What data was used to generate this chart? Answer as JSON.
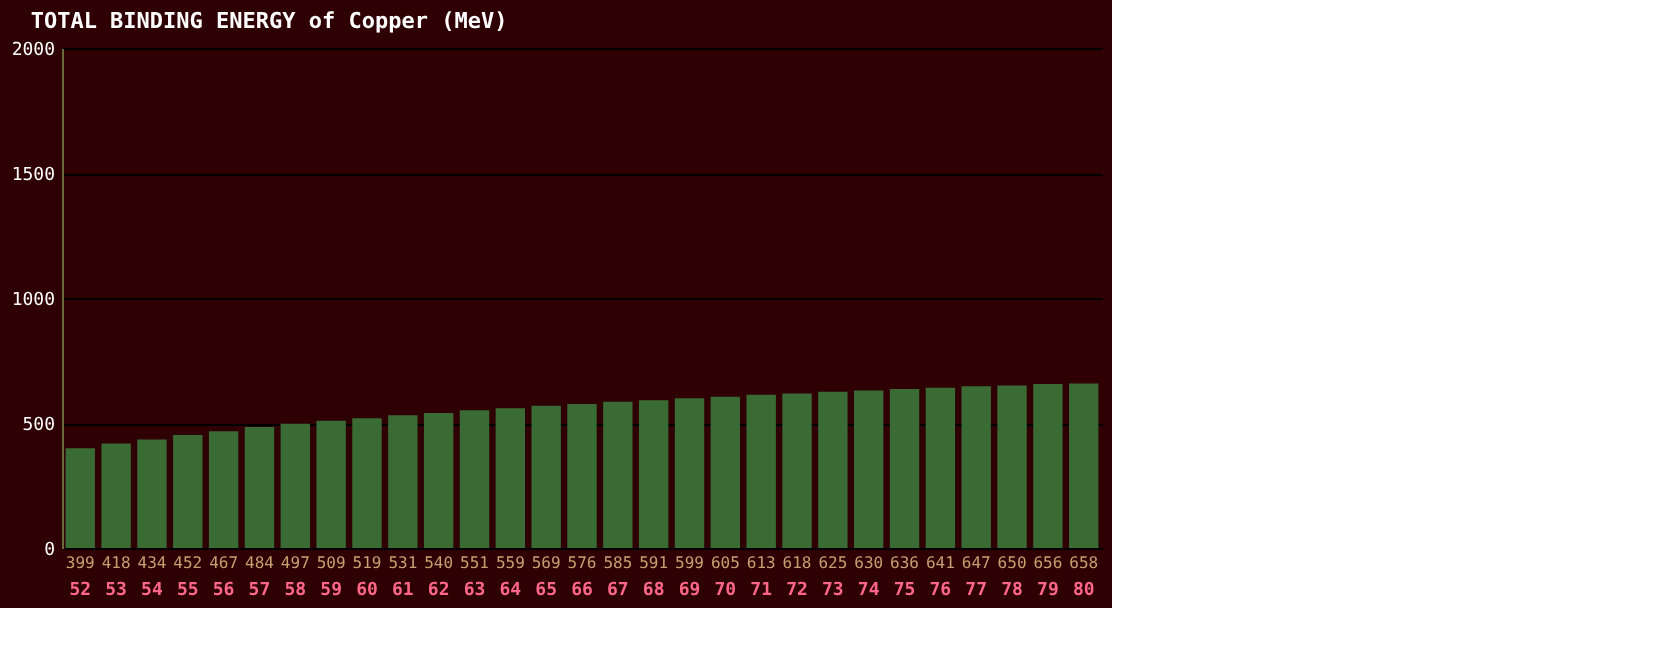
{
  "chart_data": {
    "type": "bar",
    "title": "TOTAL BINDING ENERGY of Copper (MeV)",
    "categories": [
      "52",
      "53",
      "54",
      "55",
      "56",
      "57",
      "58",
      "59",
      "60",
      "61",
      "62",
      "63",
      "64",
      "65",
      "66",
      "67",
      "68",
      "69",
      "70",
      "71",
      "72",
      "73",
      "74",
      "75",
      "76",
      "77",
      "78",
      "79",
      "80"
    ],
    "values": [
      399,
      418,
      434,
      452,
      467,
      484,
      497,
      509,
      519,
      531,
      540,
      551,
      559,
      569,
      576,
      585,
      591,
      599,
      605,
      613,
      618,
      625,
      630,
      636,
      641,
      647,
      650,
      656,
      658
    ],
    "color": "#3a6b35",
    "ylim": [
      0,
      2000
    ],
    "yticks": [
      0,
      500,
      1000,
      1500,
      2000
    ],
    "grid": "y",
    "data_labels": true
  }
}
